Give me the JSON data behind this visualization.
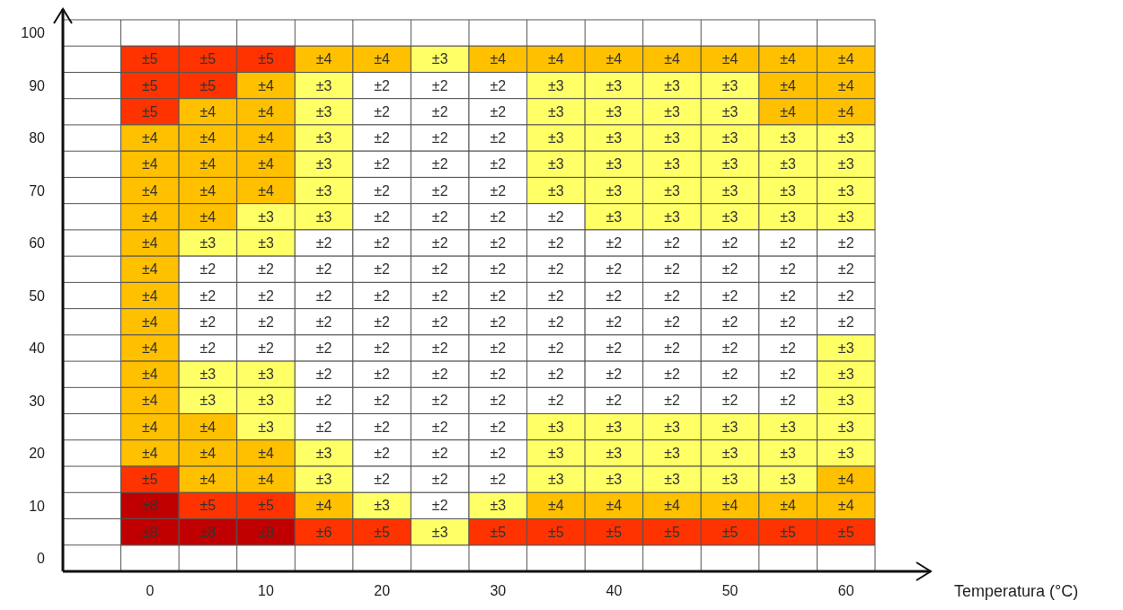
{
  "chart_data": {
    "type": "heatmap",
    "xlabel": "Temperatura (°C)",
    "grid": true,
    "categories": [
      null,
      "0",
      null,
      "10",
      null,
      "20",
      null,
      "30",
      null,
      "40",
      null,
      "50",
      null,
      "60"
    ],
    "y_categories": [
      "100",
      null,
      "90",
      null,
      "80",
      null,
      "70",
      null,
      "60",
      null,
      "50",
      null,
      "40",
      null,
      "30",
      null,
      "20",
      null,
      "10",
      null,
      "0"
    ],
    "cells": [
      [
        null,
        null,
        null,
        null,
        null,
        null,
        null,
        null,
        null,
        null,
        null,
        null,
        null,
        null
      ],
      [
        null,
        5,
        5,
        5,
        4,
        4,
        3,
        4,
        4,
        4,
        4,
        4,
        4,
        4
      ],
      [
        null,
        5,
        5,
        4,
        3,
        2,
        2,
        2,
        3,
        3,
        3,
        3,
        4,
        4
      ],
      [
        null,
        5,
        4,
        4,
        3,
        2,
        2,
        2,
        3,
        3,
        3,
        3,
        4,
        4
      ],
      [
        null,
        4,
        4,
        4,
        3,
        2,
        2,
        2,
        3,
        3,
        3,
        3,
        3,
        3
      ],
      [
        null,
        4,
        4,
        4,
        3,
        2,
        2,
        2,
        3,
        3,
        3,
        3,
        3,
        3
      ],
      [
        null,
        4,
        4,
        4,
        3,
        2,
        2,
        2,
        3,
        3,
        3,
        3,
        3,
        3
      ],
      [
        null,
        4,
        4,
        3,
        3,
        2,
        2,
        2,
        2,
        3,
        3,
        3,
        3,
        3
      ],
      [
        null,
        4,
        3,
        3,
        2,
        2,
        2,
        2,
        2,
        2,
        2,
        2,
        2,
        2
      ],
      [
        null,
        4,
        2,
        2,
        2,
        2,
        2,
        2,
        2,
        2,
        2,
        2,
        2,
        2
      ],
      [
        null,
        4,
        2,
        2,
        2,
        2,
        2,
        2,
        2,
        2,
        2,
        2,
        2,
        2
      ],
      [
        null,
        4,
        2,
        2,
        2,
        2,
        2,
        2,
        2,
        2,
        2,
        2,
        2,
        2
      ],
      [
        null,
        4,
        2,
        2,
        2,
        2,
        2,
        2,
        2,
        2,
        2,
        2,
        2,
        3
      ],
      [
        null,
        4,
        3,
        3,
        2,
        2,
        2,
        2,
        2,
        2,
        2,
        2,
        2,
        3
      ],
      [
        null,
        4,
        3,
        3,
        2,
        2,
        2,
        2,
        2,
        2,
        2,
        2,
        2,
        3
      ],
      [
        null,
        4,
        4,
        3,
        2,
        2,
        2,
        2,
        3,
        3,
        3,
        3,
        3,
        3
      ],
      [
        null,
        4,
        4,
        4,
        3,
        2,
        2,
        2,
        3,
        3,
        3,
        3,
        3,
        3
      ],
      [
        null,
        5,
        4,
        4,
        3,
        2,
        2,
        2,
        3,
        3,
        3,
        3,
        3,
        4
      ],
      [
        null,
        8,
        5,
        5,
        4,
        3,
        2,
        3,
        4,
        4,
        4,
        4,
        4,
        4
      ],
      [
        null,
        8,
        8,
        8,
        6,
        5,
        3,
        5,
        5,
        5,
        5,
        5,
        5,
        5
      ],
      [
        null,
        null,
        null,
        null,
        null,
        null,
        null,
        null,
        null,
        null,
        null,
        null,
        null,
        null
      ]
    ],
    "cell_labels": [
      [
        null,
        null,
        null,
        null,
        null,
        null,
        null,
        null,
        null,
        null,
        null,
        null,
        null,
        null
      ],
      [
        null,
        "±5",
        "±5",
        "±5",
        "±4",
        "±4",
        "±3",
        "±4",
        "±4",
        "±4",
        "±4",
        "±4",
        "±4",
        "±4"
      ],
      [
        null,
        "±5",
        "±5",
        "±4",
        "±3",
        "±2",
        "±2",
        "±2",
        "±3",
        "±3",
        "±3",
        "±3",
        "±4",
        "±4"
      ],
      [
        null,
        "±5",
        "±4",
        "±4",
        "±3",
        "±2",
        "±2",
        "±2",
        "±3",
        "±3",
        "±3",
        "±3",
        "±4",
        "±4"
      ],
      [
        null,
        "±4",
        "±4",
        "±4",
        "±3",
        "±2",
        "±2",
        "±2",
        "±3",
        "±3",
        "±3",
        "±3",
        "±3",
        "±3"
      ],
      [
        null,
        "±4",
        "±4",
        "±4",
        "±3",
        "±2",
        "±2",
        "±2",
        "±3",
        "±3",
        "±3",
        "±3",
        "±3",
        "±3"
      ],
      [
        null,
        "±4",
        "±4",
        "±4",
        "±3",
        "±2",
        "±2",
        "±2",
        "±3",
        "±3",
        "±3",
        "±3",
        "±3",
        "±3"
      ],
      [
        null,
        "±4",
        "±4",
        "±3",
        "±3",
        "±2",
        "±2",
        "±2",
        "±2",
        "±3",
        "±3",
        "±3",
        "±3",
        "±3"
      ],
      [
        null,
        "±4",
        "±3",
        "±3",
        "±2",
        "±2",
        "±2",
        "±2",
        "±2",
        "±2",
        "±2",
        "±2",
        "±2",
        "±2"
      ],
      [
        null,
        "±4",
        "±2",
        "±2",
        "±2",
        "±2",
        "±2",
        "±2",
        "±2",
        "±2",
        "±2",
        "±2",
        "±2",
        "±2"
      ],
      [
        null,
        "±4",
        "±2",
        "±2",
        "±2",
        "±2",
        "±2",
        "±2",
        "±2",
        "±2",
        "±2",
        "±2",
        "±2",
        "±2"
      ],
      [
        null,
        "±4",
        "±2",
        "±2",
        "±2",
        "±2",
        "±2",
        "±2",
        "±2",
        "±2",
        "±2",
        "±2",
        "±2",
        "±2"
      ],
      [
        null,
        "±4",
        "±2",
        "±2",
        "±2",
        "±2",
        "±2",
        "±2",
        "±2",
        "±2",
        "±2",
        "±2",
        "±2",
        "±3"
      ],
      [
        null,
        "±4",
        "±3",
        "±3",
        "±2",
        "±2",
        "±2",
        "±2",
        "±2",
        "±2",
        "±2",
        "±2",
        "±2",
        "±3"
      ],
      [
        null,
        "±4",
        "±3",
        "±3",
        "±2",
        "±2",
        "±2",
        "±2",
        "±2",
        "±2",
        "±2",
        "±2",
        "±2",
        "±3"
      ],
      [
        null,
        "±4",
        "±4",
        "±3",
        "±2",
        "±2",
        "±2",
        "±2",
        "±3",
        "±3",
        "±3",
        "±3",
        "±3",
        "±3"
      ],
      [
        null,
        "±4",
        "±4",
        "±4",
        "±3",
        "±2",
        "±2",
        "±2",
        "±3",
        "±3",
        "±3",
        "±3",
        "±3",
        "±3"
      ],
      [
        null,
        "±5",
        "±4",
        "±4",
        "±3",
        "±2",
        "±2",
        "±2",
        "±3",
        "±3",
        "±3",
        "±3",
        "±3",
        "±4"
      ],
      [
        null,
        "±8",
        "±5",
        "±5",
        "±4",
        "±3",
        "±2",
        "±3",
        "±4",
        "±4",
        "±4",
        "±4",
        "±4",
        "±4"
      ],
      [
        null,
        "±8",
        "±8",
        "±8",
        "±6",
        "±5",
        "±3",
        "±5",
        "±5",
        "±5",
        "±5",
        "±5",
        "±5",
        "±5"
      ],
      [
        null,
        null,
        null,
        null,
        null,
        null,
        null,
        null,
        null,
        null,
        null,
        null,
        null,
        null
      ]
    ]
  }
}
